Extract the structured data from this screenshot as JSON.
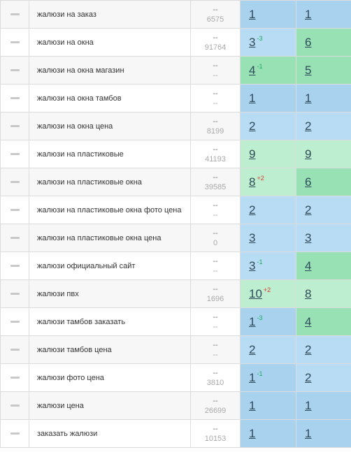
{
  "rows": [
    {
      "keyword": "жалюзи на заказ",
      "freq_top": "--",
      "freq_bottom": "6575",
      "pos1": "1",
      "pos1_delta": "",
      "pos1_dir": "",
      "pos1_color": "blue",
      "pos2": "1",
      "pos2_color": "blue"
    },
    {
      "keyword": "жалюзи на окна",
      "freq_top": "--",
      "freq_bottom": "91764",
      "pos1": "3",
      "pos1_delta": "-3",
      "pos1_dir": "up",
      "pos1_color": "lblue",
      "pos2": "6",
      "pos2_color": "green"
    },
    {
      "keyword": "жалюзи на окна магазин",
      "freq_top": "--",
      "freq_bottom": "--",
      "pos1": "4",
      "pos1_delta": "-1",
      "pos1_dir": "up",
      "pos1_color": "green",
      "pos2": "5",
      "pos2_color": "green"
    },
    {
      "keyword": "жалюзи на окна тамбов",
      "freq_top": "--",
      "freq_bottom": "--",
      "pos1": "1",
      "pos1_delta": "",
      "pos1_dir": "",
      "pos1_color": "blue",
      "pos2": "1",
      "pos2_color": "blue"
    },
    {
      "keyword": "жалюзи на окна цена",
      "freq_top": "--",
      "freq_bottom": "8199",
      "pos1": "2",
      "pos1_delta": "",
      "pos1_dir": "",
      "pos1_color": "lblue",
      "pos2": "2",
      "pos2_color": "lblue"
    },
    {
      "keyword": "жалюзи на пластиковые",
      "freq_top": "--",
      "freq_bottom": "41193",
      "pos1": "9",
      "pos1_delta": "",
      "pos1_dir": "",
      "pos1_color": "lgreen",
      "pos2": "9",
      "pos2_color": "lgreen"
    },
    {
      "keyword": "жалюзи на пластиковые окна",
      "freq_top": "--",
      "freq_bottom": "39585",
      "pos1": "8",
      "pos1_delta": "+2",
      "pos1_dir": "down",
      "pos1_color": "lgreen",
      "pos2": "6",
      "pos2_color": "green"
    },
    {
      "keyword": "жалюзи на пластиковые окна фото цена",
      "freq_top": "--",
      "freq_bottom": "--",
      "pos1": "2",
      "pos1_delta": "",
      "pos1_dir": "",
      "pos1_color": "lblue",
      "pos2": "2",
      "pos2_color": "lblue"
    },
    {
      "keyword": "жалюзи на пластиковые окна цена",
      "freq_top": "--",
      "freq_bottom": "0",
      "pos1": "3",
      "pos1_delta": "",
      "pos1_dir": "",
      "pos1_color": "lblue",
      "pos2": "3",
      "pos2_color": "lblue"
    },
    {
      "keyword": "жалюзи официальный сайт",
      "freq_top": "--",
      "freq_bottom": "--",
      "pos1": "3",
      "pos1_delta": "-1",
      "pos1_dir": "up",
      "pos1_color": "lblue",
      "pos2": "4",
      "pos2_color": "green"
    },
    {
      "keyword": "жалюзи пвх",
      "freq_top": "--",
      "freq_bottom": "1696",
      "pos1": "10",
      "pos1_delta": "+2",
      "pos1_dir": "down",
      "pos1_color": "lgreen",
      "pos2": "8",
      "pos2_color": "lgreen"
    },
    {
      "keyword": "жалюзи тамбов заказать",
      "freq_top": "--",
      "freq_bottom": "--",
      "pos1": "1",
      "pos1_delta": "-3",
      "pos1_dir": "up",
      "pos1_color": "blue",
      "pos2": "4",
      "pos2_color": "green"
    },
    {
      "keyword": "жалюзи тамбов цена",
      "freq_top": "--",
      "freq_bottom": "--",
      "pos1": "2",
      "pos1_delta": "",
      "pos1_dir": "",
      "pos1_color": "lblue",
      "pos2": "2",
      "pos2_color": "lblue"
    },
    {
      "keyword": "жалюзи фото цена",
      "freq_top": "--",
      "freq_bottom": "3810",
      "pos1": "1",
      "pos1_delta": "-1",
      "pos1_dir": "up",
      "pos1_color": "blue",
      "pos2": "2",
      "pos2_color": "lblue"
    },
    {
      "keyword": "жалюзи цена",
      "freq_top": "--",
      "freq_bottom": "26699",
      "pos1": "1",
      "pos1_delta": "",
      "pos1_dir": "",
      "pos1_color": "blue",
      "pos2": "1",
      "pos2_color": "blue"
    },
    {
      "keyword": "заказать жалюзи",
      "freq_top": "--",
      "freq_bottom": "10153",
      "pos1": "1",
      "pos1_delta": "",
      "pos1_dir": "",
      "pos1_color": "blue",
      "pos2": "1",
      "pos2_color": "blue"
    }
  ],
  "colors": {
    "blue": "#a9d2ef",
    "lblue": "#b8dcf3",
    "green": "#97e1b5",
    "lgreen": "#bceecf",
    "delta_up": "#19a95f",
    "delta_down": "#e0352b"
  }
}
